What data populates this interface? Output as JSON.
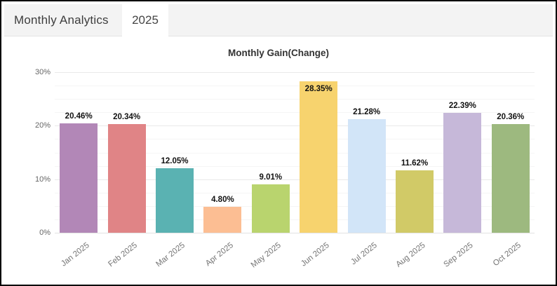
{
  "header": {
    "title": "Monthly Analytics",
    "tab_label": "2025"
  },
  "chart_data": {
    "type": "bar",
    "title": "Monthly Gain(Change)",
    "categories": [
      "Jan 2025",
      "Feb 2025",
      "Mar 2025",
      "Apr 2025",
      "May 2025",
      "Jun 2025",
      "Jul 2025",
      "Aug 2025",
      "Sep 2025",
      "Oct 2025"
    ],
    "values": [
      20.46,
      20.34,
      12.05,
      4.8,
      9.01,
      28.35,
      21.28,
      11.62,
      22.39,
      20.36
    ],
    "value_labels": [
      "20.46%",
      "20.34%",
      "12.05%",
      "4.80%",
      "9.01%",
      "28.35%",
      "21.28%",
      "11.62%",
      "22.39%",
      "20.36%"
    ],
    "bar_colors": [
      "#b287b7",
      "#e08486",
      "#5ab2b2",
      "#fcbe93",
      "#b9d46e",
      "#f7d36e",
      "#d2e5f8",
      "#d1ca67",
      "#c6b8d9",
      "#9db97f"
    ],
    "xlabel": "",
    "ylabel": "",
    "ylim": [
      0,
      30
    ],
    "y_ticks": [
      0,
      10,
      20,
      30
    ],
    "y_tick_labels": [
      "0%",
      "10%",
      "20%",
      "30%"
    ],
    "minor_grid_step": 2.5,
    "grid": "horizontal",
    "legend": "none"
  }
}
